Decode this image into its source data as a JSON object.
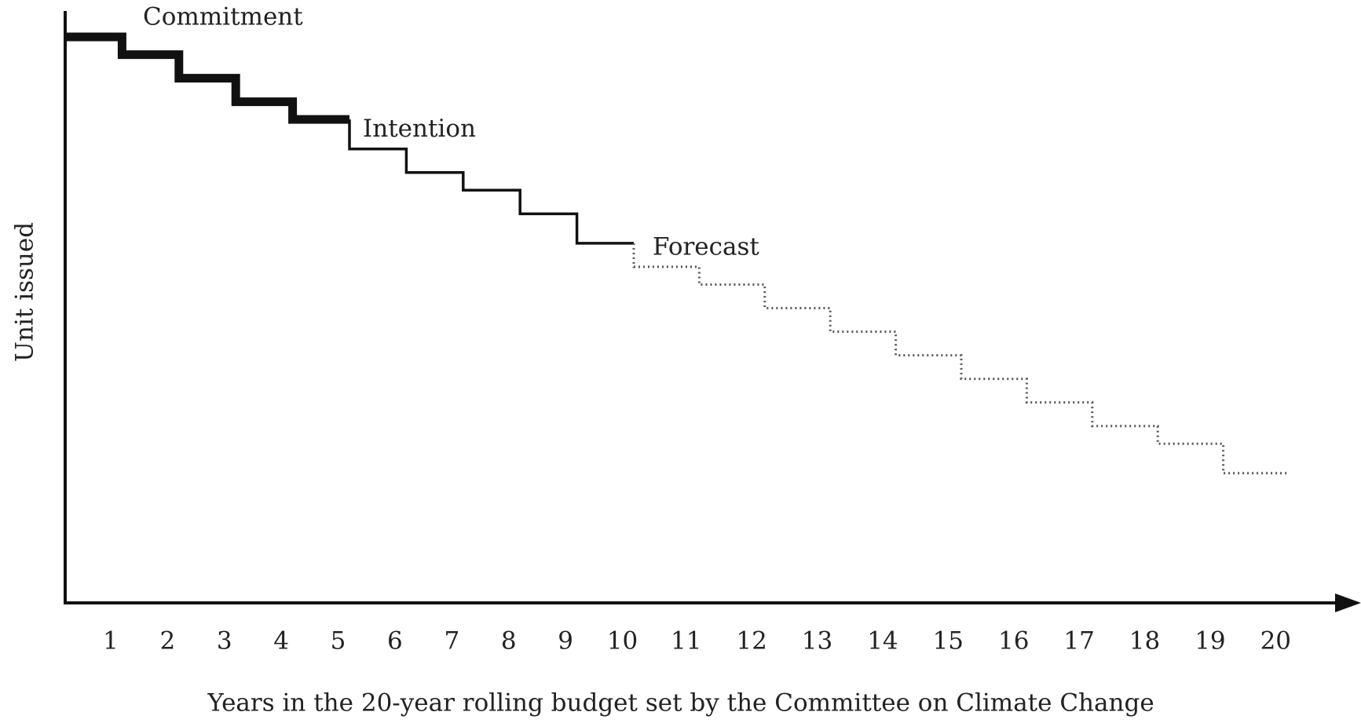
{
  "chart_data": {
    "type": "step",
    "x_label": "Years in the 20-year rolling budget set by the Committee on Climate Change",
    "y_label": "Unit issued",
    "categories": [
      "1",
      "2",
      "3",
      "4",
      "5",
      "6",
      "7",
      "8",
      "9",
      "10",
      "11",
      "12",
      "13",
      "14",
      "15",
      "16",
      "17",
      "18",
      "19",
      "20"
    ],
    "ylim": [
      0,
      100
    ],
    "series": [
      {
        "name": "Commitment",
        "color": "#111111",
        "style": "thick",
        "values": [
          96,
          93,
          89,
          85,
          82,
          null,
          null,
          null,
          null,
          null,
          null,
          null,
          null,
          null,
          null,
          null,
          null,
          null,
          null,
          null
        ]
      },
      {
        "name": "Intention",
        "color": "#111111",
        "style": "thin",
        "values": [
          null,
          null,
          null,
          null,
          null,
          77,
          73,
          70,
          66,
          61,
          null,
          null,
          null,
          null,
          null,
          null,
          null,
          null,
          null,
          null
        ]
      },
      {
        "name": "Forecast",
        "color": "#555555",
        "style": "dotted",
        "values": [
          null,
          null,
          null,
          null,
          null,
          null,
          null,
          null,
          null,
          null,
          57,
          54,
          50,
          46,
          42,
          38,
          34,
          30,
          27,
          22
        ]
      }
    ]
  }
}
